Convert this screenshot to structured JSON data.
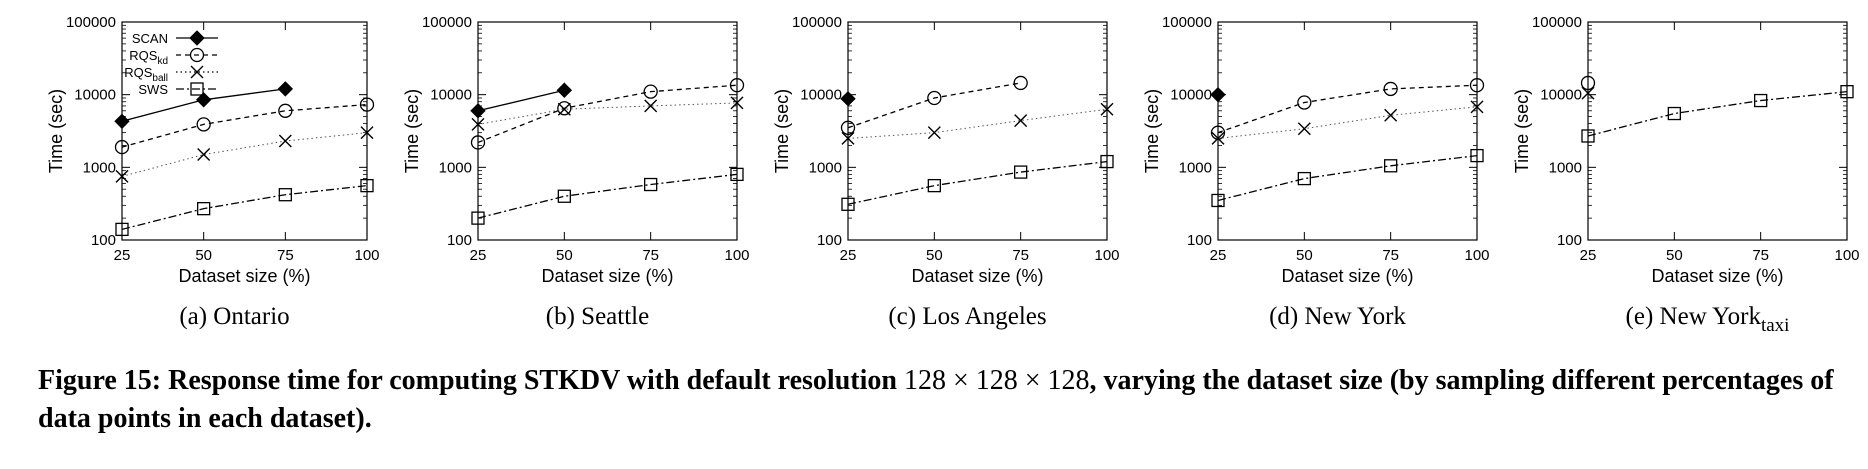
{
  "figure": {
    "caption_bold_1": "Figure 15: Response time for computing STKDV with default resolution",
    "caption_math": "128 × 128 × 128",
    "caption_bold_2": ", varying the dataset size (by sampling different percentages of data points in each dataset)."
  },
  "legend": [
    {
      "label": "SCAN",
      "sub": ""
    },
    {
      "label": "RQS",
      "sub": "kd"
    },
    {
      "label": "RQS",
      "sub": "ball"
    },
    {
      "label": "SWS",
      "sub": ""
    }
  ],
  "chart_data": [
    {
      "type": "line",
      "caption": "(a) Ontario",
      "caption_sub": "",
      "xlabel": "Dataset size (%)",
      "ylabel": "Time (sec)",
      "x": [
        25,
        50,
        75,
        100
      ],
      "xticks": [
        "25",
        "50",
        "75",
        "100"
      ],
      "yscale": "log",
      "ylim": [
        100,
        100000
      ],
      "yticks": [
        "100",
        "1000",
        "10000",
        "100000"
      ],
      "legend": "top-left",
      "series": [
        {
          "name": "SCAN",
          "values": [
            4300,
            8500,
            12000,
            null
          ]
        },
        {
          "name": "RQSkd",
          "values": [
            1900,
            3900,
            6000,
            7300
          ]
        },
        {
          "name": "RQSball",
          "values": [
            750,
            1500,
            2300,
            3000
          ]
        },
        {
          "name": "SWS",
          "values": [
            140,
            270,
            420,
            560
          ]
        }
      ]
    },
    {
      "type": "line",
      "caption": "(b) Seattle",
      "caption_sub": "",
      "xlabel": "Dataset size (%)",
      "ylabel": "Time (sec)",
      "x": [
        25,
        50,
        75,
        100
      ],
      "xticks": [
        "25",
        "50",
        "75",
        "100"
      ],
      "yscale": "log",
      "ylim": [
        100,
        100000
      ],
      "yticks": [
        "100",
        "1000",
        "10000",
        "100000"
      ],
      "series": [
        {
          "name": "SCAN",
          "values": [
            6000,
            11500,
            null,
            null
          ]
        },
        {
          "name": "RQSkd",
          "values": [
            2200,
            6500,
            11000,
            13500
          ]
        },
        {
          "name": "RQSball",
          "values": [
            3900,
            6300,
            7000,
            7700
          ]
        },
        {
          "name": "SWS",
          "values": [
            200,
            400,
            580,
            800
          ]
        }
      ]
    },
    {
      "type": "line",
      "caption": "(c) Los Angeles",
      "caption_sub": "",
      "xlabel": "Dataset size (%)",
      "ylabel": "Time (sec)",
      "x": [
        25,
        50,
        75,
        100
      ],
      "xticks": [
        "25",
        "50",
        "75",
        "100"
      ],
      "yscale": "log",
      "ylim": [
        100,
        100000
      ],
      "yticks": [
        "100",
        "1000",
        "10000",
        "100000"
      ],
      "series": [
        {
          "name": "SCAN",
          "values": [
            8800,
            null,
            null,
            null
          ]
        },
        {
          "name": "RQSkd",
          "values": [
            3500,
            9000,
            14500,
            null
          ]
        },
        {
          "name": "RQSball",
          "values": [
            2500,
            3000,
            4400,
            6300
          ]
        },
        {
          "name": "SWS",
          "values": [
            310,
            560,
            860,
            1200
          ]
        }
      ]
    },
    {
      "type": "line",
      "caption": "(d) New York",
      "caption_sub": "",
      "xlabel": "Dataset size (%)",
      "ylabel": "Time (sec)",
      "x": [
        25,
        50,
        75,
        100
      ],
      "xticks": [
        "25",
        "50",
        "75",
        "100"
      ],
      "yscale": "log",
      "ylim": [
        100,
        100000
      ],
      "yticks": [
        "100",
        "1000",
        "10000",
        "100000"
      ],
      "series": [
        {
          "name": "SCAN",
          "values": [
            10000,
            null,
            null,
            null
          ]
        },
        {
          "name": "RQSkd",
          "values": [
            3000,
            7800,
            12000,
            13500
          ]
        },
        {
          "name": "RQSball",
          "values": [
            2500,
            3400,
            5200,
            6800
          ]
        },
        {
          "name": "SWS",
          "values": [
            350,
            700,
            1050,
            1450
          ]
        }
      ]
    },
    {
      "type": "line",
      "caption": "(e) New York",
      "caption_sub": "taxi",
      "xlabel": "Dataset size (%)",
      "ylabel": "Time (sec)",
      "x": [
        25,
        50,
        75,
        100
      ],
      "xticks": [
        "25",
        "50",
        "75",
        "100"
      ],
      "yscale": "log",
      "ylim": [
        100,
        100000
      ],
      "yticks": [
        "100",
        "1000",
        "10000",
        "100000"
      ],
      "series": [
        {
          "name": "SCAN",
          "values": [
            null,
            null,
            null,
            null
          ]
        },
        {
          "name": "RQSkd",
          "values": [
            14500,
            null,
            null,
            null
          ]
        },
        {
          "name": "RQSball",
          "values": [
            10500,
            null,
            null,
            null
          ]
        },
        {
          "name": "SWS",
          "values": [
            2700,
            5500,
            8300,
            11000
          ]
        }
      ]
    }
  ]
}
